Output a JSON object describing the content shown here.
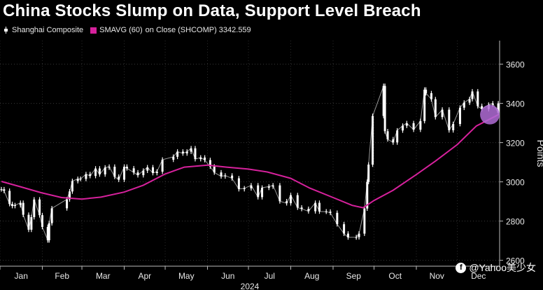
{
  "title": "China Stocks Slump on Data, Support Level Breach",
  "legend": {
    "series1": "Shanghai Composite",
    "series2_name": "SMAVG (60)",
    "series2_rest": "on Close (SHCOMP) 3342.559"
  },
  "watermark": "@Yahoo美少女",
  "colors": {
    "background": "#000000",
    "price": "#ffffff",
    "sma": "#d6219c",
    "marker": "#b06cd6"
  },
  "chart_data": {
    "type": "line",
    "title": "China Stocks Slump on Data, Support Level Breach",
    "ylabel": "Points",
    "xlabel": "2024",
    "ylim": [
      2570,
      3720
    ],
    "yticks": [
      2600,
      2800,
      3000,
      3200,
      3400,
      3600
    ],
    "months": [
      "Jan",
      "Feb",
      "Mar",
      "Apr",
      "May",
      "Jun",
      "Jul",
      "Aug",
      "Sep",
      "Oct",
      "Nov",
      "Dec"
    ],
    "legend_position": "top-left",
    "grid": true,
    "series": [
      {
        "name": "Shanghai Composite",
        "style": "ohlc",
        "x": [
          "2024-01-02",
          "2024-01-04",
          "2024-01-08",
          "2024-01-10",
          "2024-01-12",
          "2024-01-16",
          "2024-01-18",
          "2024-01-22",
          "2024-01-24",
          "2024-01-26",
          "2024-01-30",
          "2024-02-01",
          "2024-02-05",
          "2024-02-06",
          "2024-02-08",
          "2024-02-19",
          "2024-02-21",
          "2024-02-23",
          "2024-02-27",
          "2024-02-29",
          "2024-03-04",
          "2024-03-07",
          "2024-03-11",
          "2024-03-14",
          "2024-03-18",
          "2024-03-21",
          "2024-03-25",
          "2024-03-28",
          "2024-04-01",
          "2024-04-03",
          "2024-04-08",
          "2024-04-11",
          "2024-04-15",
          "2024-04-18",
          "2024-04-22",
          "2024-04-25",
          "2024-04-29",
          "2024-05-07",
          "2024-05-10",
          "2024-05-14",
          "2024-05-17",
          "2024-05-20",
          "2024-05-23",
          "2024-05-27",
          "2024-05-30",
          "2024-06-03",
          "2024-06-06",
          "2024-06-11",
          "2024-06-14",
          "2024-06-19",
          "2024-06-24",
          "2024-06-28",
          "2024-07-03",
          "2024-07-08",
          "2024-07-11",
          "2024-07-16",
          "2024-07-19",
          "2024-07-24",
          "2024-07-29",
          "2024-08-01",
          "2024-08-06",
          "2024-08-09",
          "2024-08-14",
          "2024-08-19",
          "2024-08-22",
          "2024-08-27",
          "2024-08-30",
          "2024-09-04",
          "2024-09-09",
          "2024-09-12",
          "2024-09-18",
          "2024-09-20",
          "2024-09-24",
          "2024-09-26",
          "2024-09-27",
          "2024-09-30",
          "2024-10-08",
          "2024-10-09",
          "2024-10-11",
          "2024-10-15",
          "2024-10-18",
          "2024-10-22",
          "2024-10-25",
          "2024-10-30",
          "2024-11-04",
          "2024-11-07",
          "2024-11-08",
          "2024-11-12",
          "2024-11-15",
          "2024-11-20",
          "2024-11-25",
          "2024-11-28",
          "2024-12-03",
          "2024-12-06",
          "2024-12-10",
          "2024-12-12",
          "2024-12-16",
          "2024-12-19",
          "2024-12-24",
          "2024-12-27",
          "2024-12-31"
        ],
        "values": [
          2962,
          2954,
          2887,
          2877,
          2881,
          2893,
          2832,
          2756,
          2820,
          2910,
          2830,
          2770,
          2702,
          2789,
          2865,
          2911,
          2951,
          3004,
          3015,
          3015,
          3039,
          3030,
          3068,
          3038,
          3073,
          3077,
          3026,
          3011,
          3077,
          3069,
          3048,
          3034,
          3057,
          3074,
          3045,
          3052,
          3113,
          3128,
          3154,
          3145,
          3154,
          3171,
          3116,
          3124,
          3111,
          3078,
          3048,
          3028,
          3032,
          3018,
          2963,
          2967,
          2982,
          2922,
          2970,
          2976,
          2982,
          2901,
          2891,
          2932,
          2869,
          2862,
          2850,
          2893,
          2849,
          2848,
          2842,
          2784,
          2736,
          2717,
          2718,
          2736,
          2864,
          3000,
          3088,
          3336,
          3489,
          3258,
          3217,
          3201,
          3262,
          3286,
          3299,
          3266,
          3310,
          3470,
          3452,
          3421,
          3330,
          3368,
          3263,
          3295,
          3378,
          3404,
          3422,
          3461,
          3386,
          3371,
          3393,
          3400,
          3352
        ]
      },
      {
        "name": "SMAVG (60) on Close (SHCOMP)",
        "style": "line",
        "last_value": 3342.559,
        "x": [
          "2024-01-02",
          "2024-01-16",
          "2024-01-31",
          "2024-02-15",
          "2024-03-01",
          "2024-03-15",
          "2024-04-01",
          "2024-04-15",
          "2024-05-01",
          "2024-05-15",
          "2024-06-01",
          "2024-06-15",
          "2024-07-01",
          "2024-07-15",
          "2024-08-01",
          "2024-08-15",
          "2024-09-01",
          "2024-09-15",
          "2024-09-23",
          "2024-10-01",
          "2024-10-15",
          "2024-11-01",
          "2024-11-15",
          "2024-12-01",
          "2024-12-15",
          "2024-12-31"
        ],
        "values": [
          3002,
          2975,
          2945,
          2920,
          2912,
          2922,
          2948,
          2983,
          3040,
          3075,
          3085,
          3075,
          3065,
          3050,
          3018,
          2968,
          2920,
          2880,
          2868,
          2905,
          2957,
          3037,
          3106,
          3190,
          3285,
          3342
        ]
      }
    ]
  }
}
